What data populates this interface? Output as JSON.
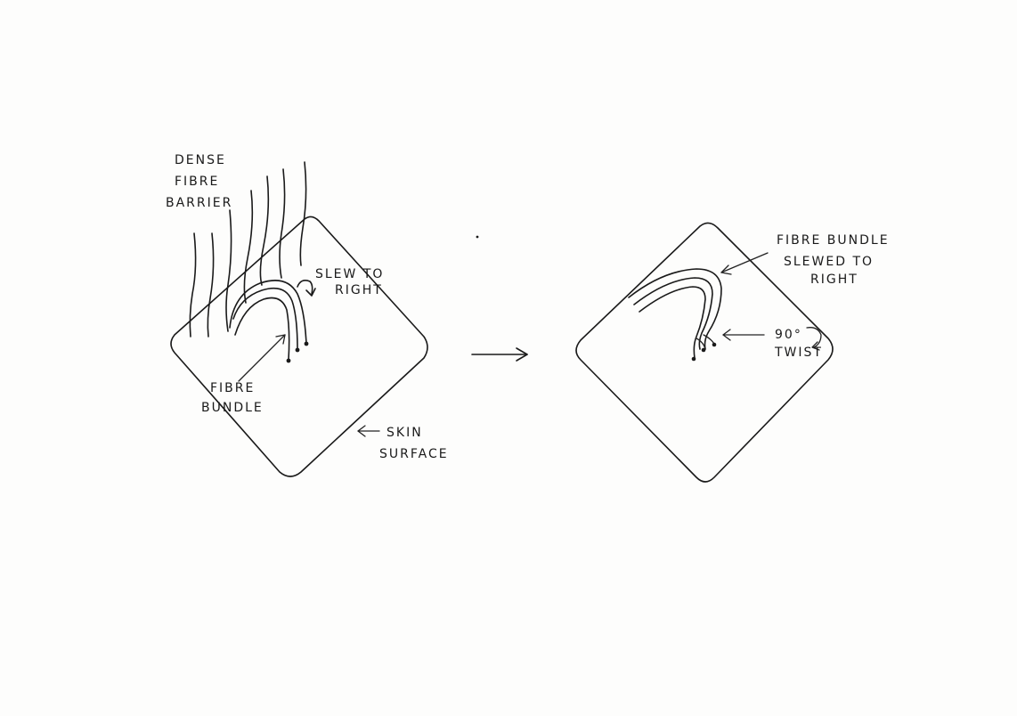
{
  "labels": {
    "dense_fibre_barrier": [
      "DENSE",
      "FIBRE",
      "BARRIER"
    ],
    "slew_to_right": [
      "SLEW TO",
      "RIGHT"
    ],
    "fibre_bundle_left": [
      "FIBRE",
      "BUNDLE"
    ],
    "skin_surface": [
      "SKIN",
      "SURFACE"
    ],
    "fibre_bundle_slewed": [
      "FIBRE BUNDLE",
      "SLEWED TO",
      "RIGHT"
    ],
    "twist": [
      "90°",
      "TWIST"
    ]
  }
}
